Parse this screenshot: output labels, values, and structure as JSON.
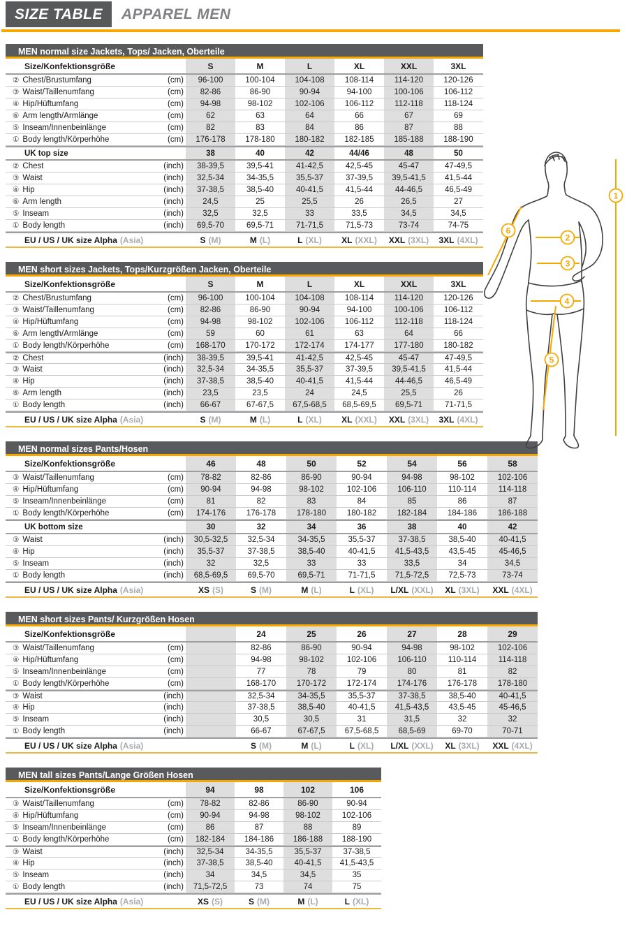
{
  "header": {
    "title": "SIZE TABLE",
    "subtitle": "APPAREL MEN"
  },
  "colors": {
    "accent_orange": "#F7A800",
    "bar_gray": "#595A5C",
    "shade_gray": "#DEDEDE",
    "muted_text": "#A8AAAD"
  },
  "figure": {
    "markers": [
      {
        "label": "1",
        "name": "body-length"
      },
      {
        "label": "2",
        "name": "chest"
      },
      {
        "label": "3",
        "name": "waist"
      },
      {
        "label": "4",
        "name": "hip"
      },
      {
        "label": "5",
        "name": "inseam"
      },
      {
        "label": "6",
        "name": "arm-length"
      }
    ]
  },
  "tables": [
    {
      "title": "MEN normal size Jackets, Tops/ Jacken, Oberteile",
      "size_label": "Size/Konfektionsgröße",
      "columns": [
        "S",
        "M",
        "L",
        "XL",
        "XXL",
        "3XL"
      ],
      "rows": [
        {
          "icon": 2,
          "label": "Chest/Brustumfang",
          "unit": "(cm)",
          "values": [
            "96-100",
            "100-104",
            "104-108",
            "108-114",
            "114-120",
            "120-126"
          ]
        },
        {
          "icon": 3,
          "label": "Waist/Taillenumfang",
          "unit": "(cm)",
          "values": [
            "82-86",
            "86-90",
            "90-94",
            "94-100",
            "100-106",
            "106-112"
          ]
        },
        {
          "icon": 4,
          "label": "Hip/Hüftumfang",
          "unit": "(cm)",
          "values": [
            "94-98",
            "98-102",
            "102-106",
            "106-112",
            "112-118",
            "118-124"
          ]
        },
        {
          "icon": 6,
          "label": "Arm length/Armlänge",
          "unit": "(cm)",
          "values": [
            "62",
            "63",
            "64",
            "66",
            "67",
            "69"
          ]
        },
        {
          "icon": 5,
          "label": "Inseam/Innenbeinlänge",
          "unit": "(cm)",
          "values": [
            "82",
            "83",
            "84",
            "86",
            "87",
            "88"
          ]
        },
        {
          "icon": 1,
          "label": "Body length/Körperhöhe",
          "unit": "(cm)",
          "values": [
            "176-178",
            "178-180",
            "180-182",
            "182-185",
            "185-188",
            "188-190"
          ]
        },
        {
          "uk": true,
          "label": "UK top size",
          "values": [
            "38",
            "40",
            "42",
            "44/46",
            "48",
            "50"
          ]
        },
        {
          "icon": 2,
          "label": "Chest",
          "unit": "(inch)",
          "values": [
            "38-39,5",
            "39,5-41",
            "41-42,5",
            "42,5-45",
            "45-47",
            "47-49,5"
          ]
        },
        {
          "icon": 3,
          "label": "Waist",
          "unit": "(inch)",
          "values": [
            "32,5-34",
            "34-35,5",
            "35,5-37",
            "37-39,5",
            "39,5-41,5",
            "41,5-44"
          ]
        },
        {
          "icon": 4,
          "label": "Hip",
          "unit": "(inch)",
          "values": [
            "37-38,5",
            "38,5-40",
            "40-41,5",
            "41,5-44",
            "44-46,5",
            "46,5-49"
          ]
        },
        {
          "icon": 6,
          "label": "Arm length",
          "unit": "(inch)",
          "values": [
            "24,5",
            "25",
            "25,5",
            "26",
            "26,5",
            "27"
          ]
        },
        {
          "icon": 5,
          "label": "Inseam",
          "unit": "(inch)",
          "values": [
            "32,5",
            "32,5",
            "33",
            "33,5",
            "34,5",
            "34,5"
          ]
        },
        {
          "icon": 1,
          "label": "Body length",
          "unit": "(inch)",
          "values": [
            "69,5-70",
            "69,5-71",
            "71-71,5",
            "71,5-73",
            "73-74",
            "74-75"
          ]
        }
      ],
      "alpha_label": "EU / US / UK size Alpha",
      "alpha_suffix": "(Asia)",
      "alpha": [
        {
          "m": "S",
          "s": "(M)"
        },
        {
          "m": "M",
          "s": "(L)"
        },
        {
          "m": "L",
          "s": "(XL)"
        },
        {
          "m": "XL",
          "s": "(XXL)"
        },
        {
          "m": "XXL",
          "s": "(3XL)"
        },
        {
          "m": "3XL",
          "s": "(4XL)"
        }
      ]
    },
    {
      "title": "MEN short sizes Jackets, Tops/Kurzgrößen Jacken, Oberteile",
      "size_label": "Size/Konfektionsgröße",
      "columns": [
        "S",
        "M",
        "L",
        "XL",
        "XXL",
        "3XL"
      ],
      "rows": [
        {
          "icon": 2,
          "label": "Chest/Brustumfang",
          "unit": "(cm)",
          "values": [
            "96-100",
            "100-104",
            "104-108",
            "108-114",
            "114-120",
            "120-126"
          ]
        },
        {
          "icon": 3,
          "label": "Waist/Taillenumfang",
          "unit": "(cm)",
          "values": [
            "82-86",
            "86-90",
            "90-94",
            "94-100",
            "100-106",
            "106-112"
          ]
        },
        {
          "icon": 4,
          "label": "Hip/Hüftumfang",
          "unit": "(cm)",
          "values": [
            "94-98",
            "98-102",
            "102-106",
            "106-112",
            "112-118",
            "118-124"
          ]
        },
        {
          "icon": 6,
          "label": "Arm length/Armlänge",
          "unit": "(cm)",
          "values": [
            "59",
            "60",
            "61",
            "63",
            "64",
            "66"
          ]
        },
        {
          "icon": 1,
          "label": "Body length/Körperhöhe",
          "unit": "(cm)",
          "values": [
            "168-170",
            "170-172",
            "172-174",
            "174-177",
            "177-180",
            "180-182"
          ]
        },
        {
          "icon": 2,
          "thick_top": true,
          "label": "Chest",
          "unit": "(inch)",
          "values": [
            "38-39,5",
            "39,5-41",
            "41-42,5",
            "42,5-45",
            "45-47",
            "47-49,5"
          ]
        },
        {
          "icon": 3,
          "label": "Waist",
          "unit": "(inch)",
          "values": [
            "32,5-34",
            "34-35,5",
            "35,5-37",
            "37-39,5",
            "39,5-41,5",
            "41,5-44"
          ]
        },
        {
          "icon": 4,
          "label": "Hip",
          "unit": "(inch)",
          "values": [
            "37-38,5",
            "38,5-40",
            "40-41,5",
            "41,5-44",
            "44-46,5",
            "46,5-49"
          ]
        },
        {
          "icon": 6,
          "label": "Arm length",
          "unit": "(inch)",
          "values": [
            "23,5",
            "23,5",
            "24",
            "24,5",
            "25,5",
            "26"
          ]
        },
        {
          "icon": 1,
          "label": "Body length",
          "unit": "(inch)",
          "values": [
            "66-67",
            "67-67,5",
            "67,5-68,5",
            "68,5-69,5",
            "69,5-71",
            "71-71,5"
          ]
        }
      ],
      "alpha_label": "EU / US / UK size Alpha",
      "alpha_suffix": "(Asia)",
      "alpha": [
        {
          "m": "S",
          "s": "(M)"
        },
        {
          "m": "M",
          "s": "(L)"
        },
        {
          "m": "L",
          "s": "(XL)"
        },
        {
          "m": "XL",
          "s": "(XXL)"
        },
        {
          "m": "XXL",
          "s": "(3XL)"
        },
        {
          "m": "3XL",
          "s": "(4XL)"
        }
      ]
    },
    {
      "title": "MEN normal sizes Pants/Hosen",
      "size_label": "Size/Konfektionsgröße",
      "columns": [
        "46",
        "48",
        "50",
        "52",
        "54",
        "56",
        "58"
      ],
      "rows": [
        {
          "icon": 3,
          "label": "Waist/Taillenumfang",
          "unit": "(cm)",
          "values": [
            "78-82",
            "82-86",
            "86-90",
            "90-94",
            "94-98",
            "98-102",
            "102-106"
          ]
        },
        {
          "icon": 4,
          "label": "Hip/Hüftumfang",
          "unit": "(cm)",
          "values": [
            "90-94",
            "94-98",
            "98-102",
            "102-106",
            "106-110",
            "110-114",
            "114-118"
          ]
        },
        {
          "icon": 5,
          "label": "Inseam/Innenbeinlänge",
          "unit": "(cm)",
          "values": [
            "81",
            "82",
            "83",
            "84",
            "85",
            "86",
            "87"
          ]
        },
        {
          "icon": 1,
          "label": "Body length/Körperhöhe",
          "unit": "(cm)",
          "values": [
            "174-176",
            "176-178",
            "178-180",
            "180-182",
            "182-184",
            "184-186",
            "186-188"
          ]
        },
        {
          "uk": true,
          "label": "UK bottom size",
          "values": [
            "30",
            "32",
            "34",
            "36",
            "38",
            "40",
            "42"
          ]
        },
        {
          "icon": 3,
          "label": "Waist",
          "unit": "(inch)",
          "values": [
            "30,5-32,5",
            "32,5-34",
            "34-35,5",
            "35,5-37",
            "37-38,5",
            "38,5-40",
            "40-41,5"
          ]
        },
        {
          "icon": 4,
          "label": "Hip",
          "unit": "(inch)",
          "values": [
            "35,5-37",
            "37-38,5",
            "38,5-40",
            "40-41,5",
            "41,5-43,5",
            "43,5-45",
            "45-46,5"
          ]
        },
        {
          "icon": 5,
          "label": "Inseam",
          "unit": "(inch)",
          "values": [
            "32",
            "32,5",
            "33",
            "33",
            "33,5",
            "34",
            "34,5"
          ]
        },
        {
          "icon": 1,
          "label": "Body length",
          "unit": "(inch)",
          "values": [
            "68,5-69,5",
            "69,5-70",
            "69,5-71",
            "71-71,5",
            "71,5-72,5",
            "72,5-73",
            "73-74"
          ]
        }
      ],
      "alpha_label": "EU / US / UK size Alpha",
      "alpha_suffix": "(Asia)",
      "alpha": [
        {
          "m": "XS",
          "s": "(S)"
        },
        {
          "m": "S",
          "s": "(M)"
        },
        {
          "m": "M",
          "s": "(L)"
        },
        {
          "m": "L",
          "s": "(XL)"
        },
        {
          "m": "L/XL",
          "s": "(XXL)"
        },
        {
          "m": "XL",
          "s": "(3XL)"
        },
        {
          "m": "XXL",
          "s": "(4XL)"
        }
      ]
    },
    {
      "title": "MEN short sizes Pants/ Kurzgrößen Hosen",
      "size_label": "Size/Konfektionsgröße",
      "columns": [
        "",
        "24",
        "25",
        "26",
        "27",
        "28",
        "29"
      ],
      "rows": [
        {
          "icon": 3,
          "label": "Waist/Taillenumfang",
          "unit": "(cm)",
          "values": [
            "",
            "82-86",
            "86-90",
            "90-94",
            "94-98",
            "98-102",
            "102-106"
          ]
        },
        {
          "icon": 4,
          "label": "Hip/Hüftumfang",
          "unit": "(cm)",
          "values": [
            "",
            "94-98",
            "98-102",
            "102-106",
            "106-110",
            "110-114",
            "114-118"
          ]
        },
        {
          "icon": 5,
          "label": "Inseam/Innenbeinlänge",
          "unit": "(cm)",
          "values": [
            "",
            "77",
            "78",
            "79",
            "80",
            "81",
            "82"
          ]
        },
        {
          "icon": 1,
          "label": "Body length/Körperhöhe",
          "unit": "(cm)",
          "values": [
            "",
            "168-170",
            "170-172",
            "172-174",
            "174-176",
            "176-178",
            "178-180"
          ]
        },
        {
          "icon": 3,
          "thick_top": true,
          "label": "Waist",
          "unit": "(inch)",
          "values": [
            "",
            "32,5-34",
            "34-35,5",
            "35,5-37",
            "37-38,5",
            "38,5-40",
            "40-41,5"
          ]
        },
        {
          "icon": 4,
          "label": "Hip",
          "unit": "(inch)",
          "values": [
            "",
            "37-38,5",
            "38,5-40",
            "40-41,5",
            "41,5-43,5",
            "43,5-45",
            "45-46,5"
          ]
        },
        {
          "icon": 5,
          "label": "Inseam",
          "unit": "(inch)",
          "values": [
            "",
            "30,5",
            "30,5",
            "31",
            "31,5",
            "32",
            "32"
          ]
        },
        {
          "icon": 1,
          "label": "Body length",
          "unit": "(inch)",
          "values": [
            "",
            "66-67",
            "67-67,5",
            "67,5-68,5",
            "68,5-69",
            "69-70",
            "70-71"
          ]
        }
      ],
      "alpha_label": "EU / US / UK size Alpha",
      "alpha_suffix": "(Asia)",
      "alpha": [
        {
          "m": "",
          "s": ""
        },
        {
          "m": "S",
          "s": "(M)"
        },
        {
          "m": "M",
          "s": "(L)"
        },
        {
          "m": "L",
          "s": "(XL)"
        },
        {
          "m": "L/XL",
          "s": "(XXL)"
        },
        {
          "m": "XL",
          "s": "(3XL)"
        },
        {
          "m": "XXL",
          "s": "(4XL)"
        }
      ]
    },
    {
      "title": "MEN tall sizes Pants/Lange Größen Hosen",
      "size_label": "Size/Konfektionsgröße",
      "columns": [
        "94",
        "98",
        "102",
        "106"
      ],
      "rows": [
        {
          "icon": 3,
          "label": "Waist/Taillenumfang",
          "unit": "(cm)",
          "values": [
            "78-82",
            "82-86",
            "86-90",
            "90-94"
          ]
        },
        {
          "icon": 4,
          "label": "Hip/Hüftumfang",
          "unit": "(cm)",
          "values": [
            "90-94",
            "94-98",
            "98-102",
            "102-106"
          ]
        },
        {
          "icon": 5,
          "label": "Inseam/Innenbeinlänge",
          "unit": "(cm)",
          "values": [
            "86",
            "87",
            "88",
            "89"
          ]
        },
        {
          "icon": 1,
          "label": "Body length/Körperhöhe",
          "unit": "(cm)",
          "values": [
            "182-184",
            "184-186",
            "186-188",
            "188-190"
          ]
        },
        {
          "icon": 3,
          "thick_top": true,
          "label": "Waist",
          "unit": "(inch)",
          "values": [
            "32,5-34",
            "34-35,5",
            "35,5-37",
            "37-38,5"
          ]
        },
        {
          "icon": 4,
          "label": "Hip",
          "unit": "(inch)",
          "values": [
            "37-38,5",
            "38,5-40",
            "40-41,5",
            "41,5-43,5"
          ]
        },
        {
          "icon": 5,
          "label": "Inseam",
          "unit": "(inch)",
          "values": [
            "34",
            "34,5",
            "34,5",
            "35"
          ]
        },
        {
          "icon": 1,
          "label": "Body length",
          "unit": "(inch)",
          "values": [
            "71,5-72,5",
            "73",
            "74",
            "75"
          ]
        }
      ],
      "alpha_label": "EU / US / UK size Alpha",
      "alpha_suffix": "(Asia)",
      "alpha": [
        {
          "m": "XS",
          "s": "(S)"
        },
        {
          "m": "S",
          "s": "(M)"
        },
        {
          "m": "M",
          "s": "(L)"
        },
        {
          "m": "L",
          "s": "(XL)"
        }
      ]
    }
  ]
}
